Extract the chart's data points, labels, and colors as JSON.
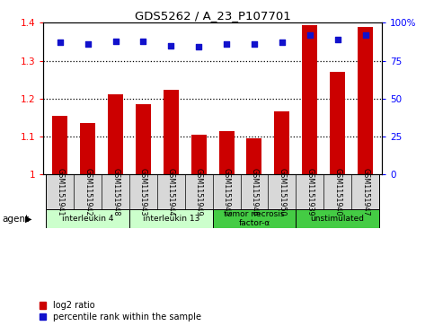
{
  "title": "GDS5262 / A_23_P107701",
  "samples": [
    "GSM1151941",
    "GSM1151942",
    "GSM1151948",
    "GSM1151943",
    "GSM1151944",
    "GSM1151949",
    "GSM1151945",
    "GSM1151946",
    "GSM1151950",
    "GSM1151939",
    "GSM1151940",
    "GSM1151947"
  ],
  "log2_ratio": [
    1.155,
    1.135,
    1.21,
    1.185,
    1.222,
    1.105,
    1.113,
    1.095,
    1.165,
    1.395,
    1.27,
    1.39
  ],
  "percentile": [
    87,
    86,
    88,
    88,
    85,
    84,
    86,
    86,
    87,
    92,
    89,
    92
  ],
  "ylim": [
    1.0,
    1.4
  ],
  "yticks_left": [
    1.0,
    1.1,
    1.2,
    1.3,
    1.4
  ],
  "ytick_labels_left": [
    "1",
    "1.1",
    "1.2",
    "1.3",
    "1.4"
  ],
  "yticks_right": [
    0,
    25,
    50,
    75,
    100
  ],
  "ytick_labels_right": [
    "0",
    "25",
    "50",
    "75",
    "100%"
  ],
  "bar_color": "#cc0000",
  "dot_color": "#1111cc",
  "bg_color": "#d8d8d8",
  "groups": [
    {
      "label": "interleukin 4",
      "start": 0,
      "end": 3,
      "color": "#ccffcc"
    },
    {
      "label": "interleukin 13",
      "start": 3,
      "end": 6,
      "color": "#ccffcc"
    },
    {
      "label": "tumor necrosis\nfactor-α",
      "start": 6,
      "end": 9,
      "color": "#44cc44"
    },
    {
      "label": "unstimulated",
      "start": 9,
      "end": 12,
      "color": "#44cc44"
    }
  ],
  "agent_label": "agent",
  "legend_items": [
    {
      "color": "#cc0000",
      "label": "log2 ratio"
    },
    {
      "color": "#1111cc",
      "label": "percentile rank within the sample"
    }
  ],
  "dotted_yticks": [
    1.1,
    1.2,
    1.3
  ]
}
